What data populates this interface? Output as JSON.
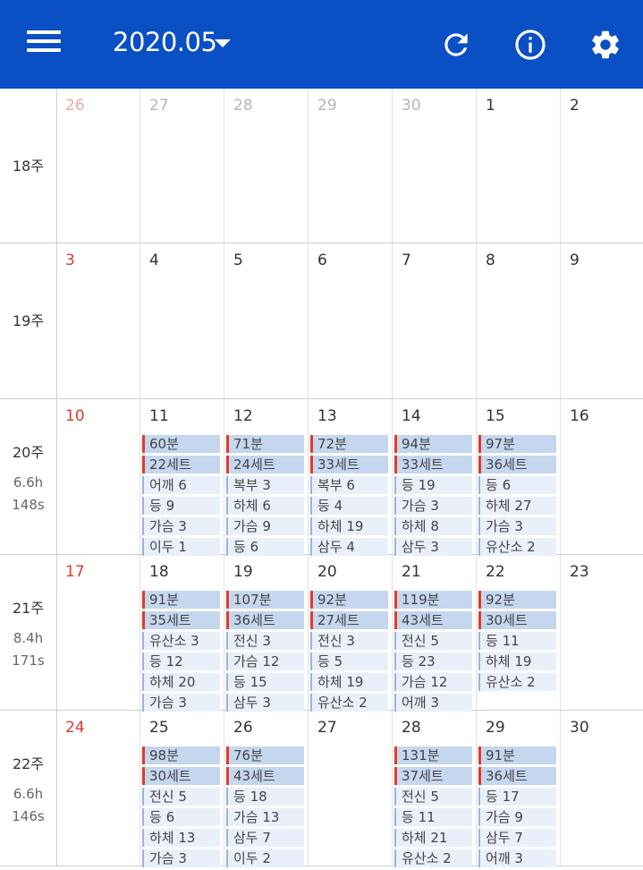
{
  "header": {
    "month": "2020.05",
    "icons": [
      "menu-icon",
      "refresh-icon",
      "info-icon",
      "settings-icon"
    ],
    "color": "#0a4fc4"
  },
  "weeks": [
    {
      "label": "18주",
      "hours": "",
      "sets": "",
      "days": [
        {
          "num": "26",
          "other": true,
          "sunday": true,
          "entries": []
        },
        {
          "num": "27",
          "other": true,
          "entries": []
        },
        {
          "num": "28",
          "other": true,
          "entries": []
        },
        {
          "num": "29",
          "other": true,
          "entries": []
        },
        {
          "num": "30",
          "other": true,
          "entries": []
        },
        {
          "num": "1",
          "entries": []
        },
        {
          "num": "2",
          "entries": []
        }
      ]
    },
    {
      "label": "19주",
      "hours": "",
      "sets": "",
      "days": [
        {
          "num": "3",
          "sunday": true,
          "entries": []
        },
        {
          "num": "4",
          "entries": []
        },
        {
          "num": "5",
          "entries": []
        },
        {
          "num": "6",
          "entries": []
        },
        {
          "num": "7",
          "entries": []
        },
        {
          "num": "8",
          "entries": []
        },
        {
          "num": "9",
          "entries": []
        }
      ]
    },
    {
      "label": "20주",
      "hours": "6.6h",
      "sets": "148s",
      "days": [
        {
          "num": "10",
          "sunday": true,
          "entries": []
        },
        {
          "num": "11",
          "entries": [
            "60분",
            "22세트",
            "어깨 6",
            "등 9",
            "가슴 3",
            "이두 1"
          ]
        },
        {
          "num": "12",
          "entries": [
            "71분",
            "24세트",
            "복부 3",
            "하체 6",
            "가슴 9",
            "등 6"
          ]
        },
        {
          "num": "13",
          "entries": [
            "72분",
            "33세트",
            "복부 6",
            "등 4",
            "하체 19",
            "삼두 4"
          ]
        },
        {
          "num": "14",
          "entries": [
            "94분",
            "33세트",
            "등 19",
            "가슴 3",
            "하체 8",
            "삼두 3"
          ]
        },
        {
          "num": "15",
          "entries": [
            "97분",
            "36세트",
            "등 6",
            "하체 27",
            "가슴 3",
            "유산소 2"
          ]
        },
        {
          "num": "16",
          "entries": []
        }
      ]
    },
    {
      "label": "21주",
      "hours": "8.4h",
      "sets": "171s",
      "days": [
        {
          "num": "17",
          "sunday": true,
          "entries": []
        },
        {
          "num": "18",
          "entries": [
            "91분",
            "35세트",
            "유산소 3",
            "등 12",
            "하체 20",
            "가슴 3"
          ]
        },
        {
          "num": "19",
          "entries": [
            "107분",
            "36세트",
            "전신 3",
            "가슴 12",
            "등 15",
            "삼두 3"
          ]
        },
        {
          "num": "20",
          "entries": [
            "92분",
            "27세트",
            "전신 3",
            "등 5",
            "하체 19",
            "유산소 2"
          ]
        },
        {
          "num": "21",
          "entries": [
            "119분",
            "43세트",
            "전신 5",
            "등 23",
            "가슴 12",
            "어깨 3"
          ]
        },
        {
          "num": "22",
          "entries": [
            "92분",
            "30세트",
            "등 11",
            "하체 19",
            "유산소 2"
          ]
        },
        {
          "num": "23",
          "entries": []
        }
      ]
    },
    {
      "label": "22주",
      "hours": "6.6h",
      "sets": "146s",
      "days": [
        {
          "num": "24",
          "sunday": true,
          "entries": []
        },
        {
          "num": "25",
          "entries": [
            "98분",
            "30세트",
            "전신 5",
            "등 6",
            "하체 13",
            "가슴 3"
          ]
        },
        {
          "num": "26",
          "entries": [
            "76분",
            "43세트",
            "등 18",
            "가슴 13",
            "삼두 7",
            "이두 2"
          ]
        },
        {
          "num": "27",
          "entries": []
        },
        {
          "num": "28",
          "entries": [
            "131분",
            "37세트",
            "전신 5",
            "등 11",
            "하체 21",
            "유산소 2"
          ]
        },
        {
          "num": "29",
          "entries": [
            "91분",
            "36세트",
            "등 17",
            "가슴 9",
            "삼두 7",
            "어깨 3"
          ]
        },
        {
          "num": "30",
          "entries": []
        }
      ]
    }
  ]
}
